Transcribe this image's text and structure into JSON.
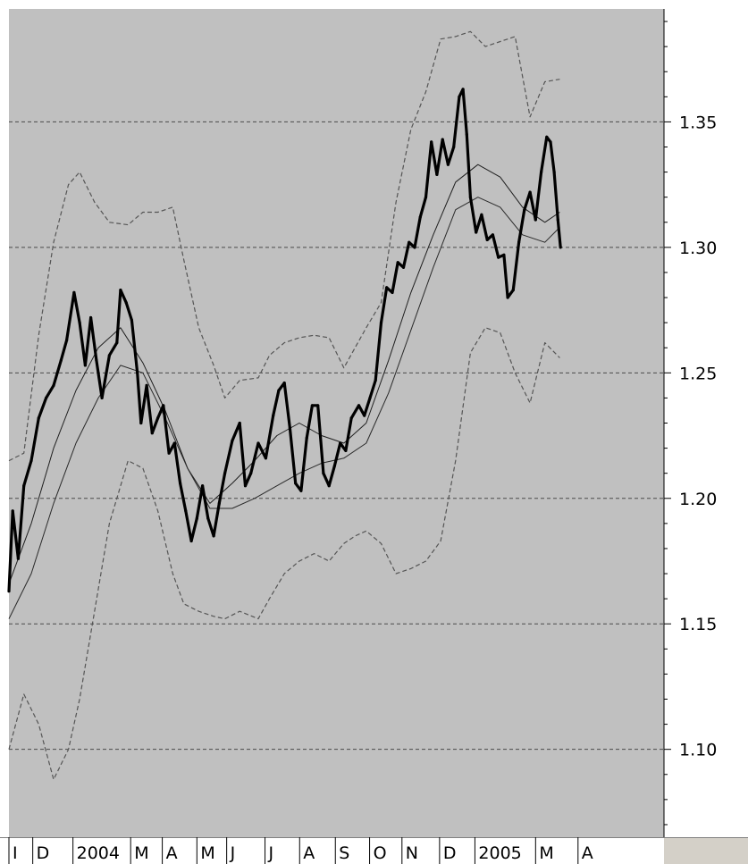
{
  "chart_data": {
    "type": "line",
    "title": "",
    "xlabel": "",
    "ylabel": "",
    "ylim": [
      1.065,
      1.395
    ],
    "xlim": [
      0,
      17.6
    ],
    "grid": {
      "horizontal": true,
      "style": "dashed"
    },
    "y_ticks": [
      1.1,
      1.15,
      1.2,
      1.25,
      1.3,
      1.35
    ],
    "y_tick_labels": [
      "1.10",
      "1.15",
      "1.20",
      "1.25",
      "1.30",
      "1.35"
    ],
    "x_ticks": [
      {
        "label": "І",
        "x": 0.0
      },
      {
        "label": "D",
        "x": 0.64
      },
      {
        "label": "2004",
        "x": 1.72
      },
      {
        "label": "M",
        "x": 3.27
      },
      {
        "label": "A",
        "x": 4.12
      },
      {
        "label": "M",
        "x": 5.05
      },
      {
        "label": "J",
        "x": 5.85
      },
      {
        "label": "J",
        "x": 6.88
      },
      {
        "label": "A",
        "x": 7.81
      },
      {
        "label": "S",
        "x": 8.77
      },
      {
        "label": "O",
        "x": 9.69
      },
      {
        "label": "N",
        "x": 10.56
      },
      {
        "label": "D",
        "x": 11.57
      },
      {
        "label": "2005",
        "x": 12.52
      },
      {
        "label": "M",
        "x": 14.15
      },
      {
        "label": "A",
        "x": 15.29
      }
    ],
    "series": [
      {
        "style": "price-bold",
        "color": "#000000",
        "points": [
          [
            0.0,
            1.163
          ],
          [
            0.1,
            1.195
          ],
          [
            0.25,
            1.176
          ],
          [
            0.4,
            1.205
          ],
          [
            0.6,
            1.215
          ],
          [
            0.8,
            1.232
          ],
          [
            1.0,
            1.24
          ],
          [
            1.2,
            1.245
          ],
          [
            1.4,
            1.255
          ],
          [
            1.55,
            1.263
          ],
          [
            1.75,
            1.282
          ],
          [
            1.9,
            1.27
          ],
          [
            2.05,
            1.253
          ],
          [
            2.2,
            1.272
          ],
          [
            2.35,
            1.255
          ],
          [
            2.5,
            1.24
          ],
          [
            2.7,
            1.257
          ],
          [
            2.9,
            1.262
          ],
          [
            3.0,
            1.283
          ],
          [
            3.15,
            1.278
          ],
          [
            3.3,
            1.271
          ],
          [
            3.45,
            1.25
          ],
          [
            3.55,
            1.23
          ],
          [
            3.7,
            1.245
          ],
          [
            3.85,
            1.226
          ],
          [
            4.0,
            1.232
          ],
          [
            4.15,
            1.237
          ],
          [
            4.3,
            1.218
          ],
          [
            4.45,
            1.222
          ],
          [
            4.6,
            1.206
          ],
          [
            4.75,
            1.195
          ],
          [
            4.9,
            1.183
          ],
          [
            5.05,
            1.192
          ],
          [
            5.2,
            1.205
          ],
          [
            5.35,
            1.192
          ],
          [
            5.5,
            1.185
          ],
          [
            5.65,
            1.198
          ],
          [
            5.8,
            1.21
          ],
          [
            6.0,
            1.223
          ],
          [
            6.2,
            1.23
          ],
          [
            6.35,
            1.205
          ],
          [
            6.5,
            1.21
          ],
          [
            6.7,
            1.222
          ],
          [
            6.9,
            1.216
          ],
          [
            7.1,
            1.233
          ],
          [
            7.25,
            1.243
          ],
          [
            7.4,
            1.246
          ],
          [
            7.55,
            1.228
          ],
          [
            7.7,
            1.206
          ],
          [
            7.85,
            1.203
          ],
          [
            8.0,
            1.224
          ],
          [
            8.15,
            1.237
          ],
          [
            8.3,
            1.237
          ],
          [
            8.45,
            1.21
          ],
          [
            8.6,
            1.205
          ],
          [
            8.75,
            1.213
          ],
          [
            8.9,
            1.222
          ],
          [
            9.05,
            1.219
          ],
          [
            9.2,
            1.232
          ],
          [
            9.4,
            1.237
          ],
          [
            9.55,
            1.233
          ],
          [
            9.7,
            1.24
          ],
          [
            9.85,
            1.247
          ],
          [
            10.0,
            1.27
          ],
          [
            10.15,
            1.284
          ],
          [
            10.3,
            1.282
          ],
          [
            10.45,
            1.294
          ],
          [
            10.6,
            1.292
          ],
          [
            10.75,
            1.302
          ],
          [
            10.9,
            1.3
          ],
          [
            11.05,
            1.312
          ],
          [
            11.2,
            1.32
          ],
          [
            11.35,
            1.342
          ],
          [
            11.5,
            1.329
          ],
          [
            11.65,
            1.343
          ],
          [
            11.8,
            1.333
          ],
          [
            11.95,
            1.34
          ],
          [
            12.1,
            1.36
          ],
          [
            12.2,
            1.363
          ],
          [
            12.3,
            1.345
          ],
          [
            12.4,
            1.32
          ],
          [
            12.55,
            1.306
          ],
          [
            12.7,
            1.313
          ],
          [
            12.85,
            1.303
          ],
          [
            13.0,
            1.305
          ],
          [
            13.15,
            1.296
          ],
          [
            13.3,
            1.297
          ],
          [
            13.4,
            1.28
          ],
          [
            13.55,
            1.283
          ],
          [
            13.7,
            1.302
          ],
          [
            13.85,
            1.315
          ],
          [
            14.0,
            1.322
          ],
          [
            14.15,
            1.311
          ],
          [
            14.3,
            1.33
          ],
          [
            14.45,
            1.344
          ],
          [
            14.55,
            1.342
          ],
          [
            14.65,
            1.33
          ],
          [
            14.75,
            1.311
          ],
          [
            14.82,
            1.3
          ]
        ]
      },
      {
        "style": "ma-1",
        "color": "#1a1a1a",
        "points": [
          [
            0.0,
            1.166
          ],
          [
            0.6,
            1.19
          ],
          [
            1.2,
            1.22
          ],
          [
            1.8,
            1.243
          ],
          [
            2.4,
            1.26
          ],
          [
            3.0,
            1.268
          ],
          [
            3.6,
            1.254
          ],
          [
            4.2,
            1.235
          ],
          [
            4.8,
            1.212
          ],
          [
            5.4,
            1.198
          ],
          [
            6.0,
            1.206
          ],
          [
            6.6,
            1.215
          ],
          [
            7.2,
            1.225
          ],
          [
            7.8,
            1.23
          ],
          [
            8.4,
            1.225
          ],
          [
            9.0,
            1.222
          ],
          [
            9.6,
            1.23
          ],
          [
            10.2,
            1.255
          ],
          [
            10.8,
            1.282
          ],
          [
            11.4,
            1.305
          ],
          [
            12.0,
            1.326
          ],
          [
            12.6,
            1.333
          ],
          [
            13.2,
            1.328
          ],
          [
            13.8,
            1.316
          ],
          [
            14.4,
            1.31
          ],
          [
            14.8,
            1.314
          ]
        ]
      },
      {
        "style": "ma-2",
        "color": "#303030",
        "points": [
          [
            0.0,
            1.152
          ],
          [
            0.6,
            1.17
          ],
          [
            1.2,
            1.198
          ],
          [
            1.8,
            1.222
          ],
          [
            2.4,
            1.24
          ],
          [
            3.0,
            1.253
          ],
          [
            3.6,
            1.25
          ],
          [
            4.2,
            1.232
          ],
          [
            4.8,
            1.212
          ],
          [
            5.4,
            1.196
          ],
          [
            6.0,
            1.196
          ],
          [
            6.6,
            1.2
          ],
          [
            7.2,
            1.205
          ],
          [
            7.8,
            1.21
          ],
          [
            8.4,
            1.214
          ],
          [
            9.0,
            1.216
          ],
          [
            9.6,
            1.222
          ],
          [
            10.2,
            1.242
          ],
          [
            10.8,
            1.267
          ],
          [
            11.4,
            1.292
          ],
          [
            12.0,
            1.315
          ],
          [
            12.6,
            1.32
          ],
          [
            13.2,
            1.316
          ],
          [
            13.8,
            1.305
          ],
          [
            14.4,
            1.302
          ],
          [
            14.8,
            1.308
          ]
        ]
      },
      {
        "style": "band-upper",
        "color": "#505050",
        "points": [
          [
            0.0,
            1.215
          ],
          [
            0.4,
            1.218
          ],
          [
            0.8,
            1.265
          ],
          [
            1.2,
            1.302
          ],
          [
            1.6,
            1.325
          ],
          [
            1.9,
            1.33
          ],
          [
            2.3,
            1.318
          ],
          [
            2.7,
            1.31
          ],
          [
            3.2,
            1.309
          ],
          [
            3.6,
            1.314
          ],
          [
            4.0,
            1.314
          ],
          [
            4.4,
            1.316
          ],
          [
            4.7,
            1.295
          ],
          [
            5.1,
            1.268
          ],
          [
            5.5,
            1.253
          ],
          [
            5.8,
            1.24
          ],
          [
            6.2,
            1.247
          ],
          [
            6.7,
            1.248
          ],
          [
            7.0,
            1.257
          ],
          [
            7.4,
            1.262
          ],
          [
            7.8,
            1.264
          ],
          [
            8.2,
            1.265
          ],
          [
            8.6,
            1.264
          ],
          [
            9.0,
            1.252
          ],
          [
            9.3,
            1.26
          ],
          [
            9.6,
            1.268
          ],
          [
            10.0,
            1.278
          ],
          [
            10.4,
            1.318
          ],
          [
            10.8,
            1.347
          ],
          [
            11.2,
            1.362
          ],
          [
            11.6,
            1.383
          ],
          [
            12.0,
            1.384
          ],
          [
            12.4,
            1.386
          ],
          [
            12.8,
            1.38
          ],
          [
            13.2,
            1.382
          ],
          [
            13.6,
            1.384
          ],
          [
            14.0,
            1.352
          ],
          [
            14.4,
            1.366
          ],
          [
            14.8,
            1.367
          ]
        ]
      },
      {
        "style": "band-lower",
        "color": "#505050",
        "points": [
          [
            0.0,
            1.1
          ],
          [
            0.4,
            1.122
          ],
          [
            0.8,
            1.11
          ],
          [
            1.2,
            1.088
          ],
          [
            1.6,
            1.1
          ],
          [
            1.9,
            1.12
          ],
          [
            2.3,
            1.155
          ],
          [
            2.7,
            1.19
          ],
          [
            3.2,
            1.215
          ],
          [
            3.6,
            1.212
          ],
          [
            4.0,
            1.195
          ],
          [
            4.4,
            1.17
          ],
          [
            4.7,
            1.158
          ],
          [
            5.1,
            1.155
          ],
          [
            5.5,
            1.153
          ],
          [
            5.8,
            1.152
          ],
          [
            6.2,
            1.155
          ],
          [
            6.7,
            1.152
          ],
          [
            7.0,
            1.16
          ],
          [
            7.4,
            1.17
          ],
          [
            7.8,
            1.175
          ],
          [
            8.2,
            1.178
          ],
          [
            8.6,
            1.175
          ],
          [
            9.0,
            1.182
          ],
          [
            9.3,
            1.185
          ],
          [
            9.6,
            1.187
          ],
          [
            10.0,
            1.182
          ],
          [
            10.4,
            1.17
          ],
          [
            10.8,
            1.172
          ],
          [
            11.2,
            1.175
          ],
          [
            11.6,
            1.183
          ],
          [
            12.0,
            1.215
          ],
          [
            12.4,
            1.258
          ],
          [
            12.8,
            1.268
          ],
          [
            13.2,
            1.266
          ],
          [
            13.6,
            1.25
          ],
          [
            14.0,
            1.238
          ],
          [
            14.4,
            1.262
          ],
          [
            14.8,
            1.256
          ]
        ]
      }
    ]
  }
}
